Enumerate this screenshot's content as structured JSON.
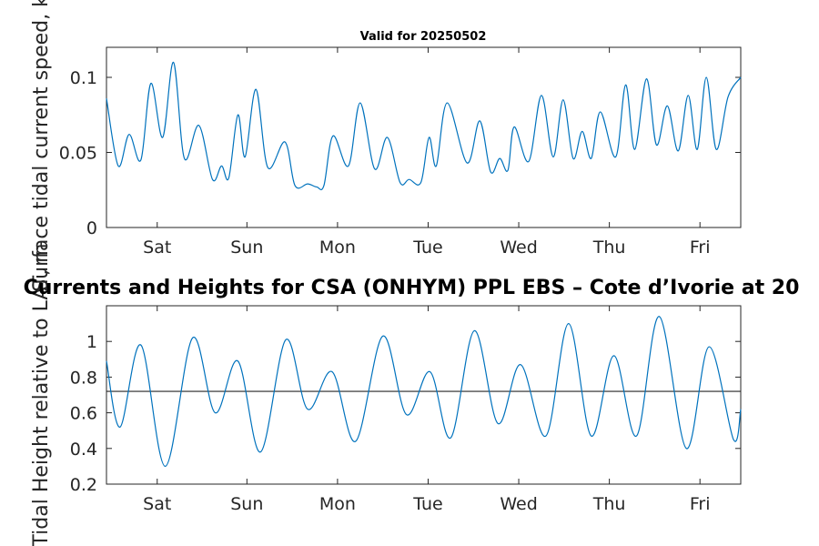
{
  "chart_data": [
    {
      "type": "line",
      "title": "Valid for 20250502",
      "ylabel": "Surface tidal current speed, kn",
      "ylim": [
        0,
        0.12
      ],
      "yticks": [
        "0",
        "0.05",
        "0.1"
      ],
      "xlim": [
        0,
        7
      ],
      "xticks": [
        {
          "label": "Sat",
          "x": 0.56
        },
        {
          "label": "Sun",
          "x": 1.55
        },
        {
          "label": "Mon",
          "x": 2.55
        },
        {
          "label": "Tue",
          "x": 3.55
        },
        {
          "label": "Wed",
          "x": 4.55
        },
        {
          "label": "Thu",
          "x": 5.55
        },
        {
          "label": "Fri",
          "x": 6.55
        }
      ],
      "color": "#0072bd",
      "series": [
        {
          "name": "",
          "x": [
            0,
            0.13,
            0.25,
            0.38,
            0.49,
            0.62,
            0.74,
            0.86,
            1.02,
            1.17,
            1.27,
            1.35,
            1.45,
            1.53,
            1.65,
            1.78,
            1.97,
            2.08,
            2.22,
            2.32,
            2.4,
            2.5,
            2.67,
            2.8,
            2.96,
            3.1,
            3.24,
            3.34,
            3.47,
            3.56,
            3.64,
            3.76,
            3.98,
            4.12,
            4.24,
            4.34,
            4.43,
            4.5,
            4.66,
            4.8,
            4.93,
            5.04,
            5.15,
            5.25,
            5.35,
            5.45,
            5.62,
            5.73,
            5.83,
            5.96,
            6.07,
            6.19,
            6.31,
            6.42,
            6.52,
            6.62,
            6.73,
            6.86,
            7.0
          ],
          "y": [
            0.086,
            0.041,
            0.062,
            0.045,
            0.096,
            0.06,
            0.11,
            0.046,
            0.068,
            0.032,
            0.041,
            0.033,
            0.075,
            0.047,
            0.092,
            0.04,
            0.057,
            0.028,
            0.029,
            0.027,
            0.028,
            0.061,
            0.041,
            0.083,
            0.039,
            0.06,
            0.03,
            0.032,
            0.03,
            0.06,
            0.041,
            0.083,
            0.043,
            0.071,
            0.037,
            0.046,
            0.038,
            0.067,
            0.044,
            0.088,
            0.047,
            0.085,
            0.046,
            0.064,
            0.046,
            0.077,
            0.047,
            0.095,
            0.052,
            0.099,
            0.055,
            0.081,
            0.051,
            0.088,
            0.052,
            0.1,
            0.052,
            0.087,
            0.1
          ]
        }
      ]
    },
    {
      "type": "line",
      "title": "Currents and Heights for CSA (ONHYM) PPL EBS  – Cote d’Ivorie at 20",
      "ylabel": "Tidal Height relative to LAT, m",
      "ylim": [
        0.2,
        1.2
      ],
      "yticks": [
        "0.2",
        "0.4",
        "0.6",
        "0.8",
        "1"
      ],
      "xlim": [
        0,
        7
      ],
      "xticks": [
        {
          "label": "Sat",
          "x": 0.56
        },
        {
          "label": "Sun",
          "x": 1.55
        },
        {
          "label": "Mon",
          "x": 2.55
        },
        {
          "label": "Tue",
          "x": 3.55
        },
        {
          "label": "Wed",
          "x": 4.55
        },
        {
          "label": "Thu",
          "x": 5.55
        },
        {
          "label": "Fri",
          "x": 6.55
        }
      ],
      "reference_line": 0.72,
      "color": "#0072bd",
      "series": [
        {
          "name": "",
          "x": [
            0,
            0.15,
            0.38,
            0.65,
            0.95,
            1.2,
            1.45,
            1.7,
            1.98,
            2.22,
            2.49,
            2.75,
            3.05,
            3.31,
            3.57,
            3.8,
            4.06,
            4.32,
            4.57,
            4.85,
            5.1,
            5.35,
            5.6,
            5.85,
            6.1,
            6.4,
            6.65,
            6.92,
            7.0
          ],
          "y": [
            0.89,
            0.52,
            0.98,
            0.3,
            1.02,
            0.6,
            0.89,
            0.38,
            1.01,
            0.62,
            0.83,
            0.44,
            1.03,
            0.59,
            0.83,
            0.46,
            1.06,
            0.54,
            0.87,
            0.47,
            1.1,
            0.47,
            0.92,
            0.47,
            1.14,
            0.4,
            0.97,
            0.45,
            0.62
          ]
        }
      ]
    }
  ]
}
